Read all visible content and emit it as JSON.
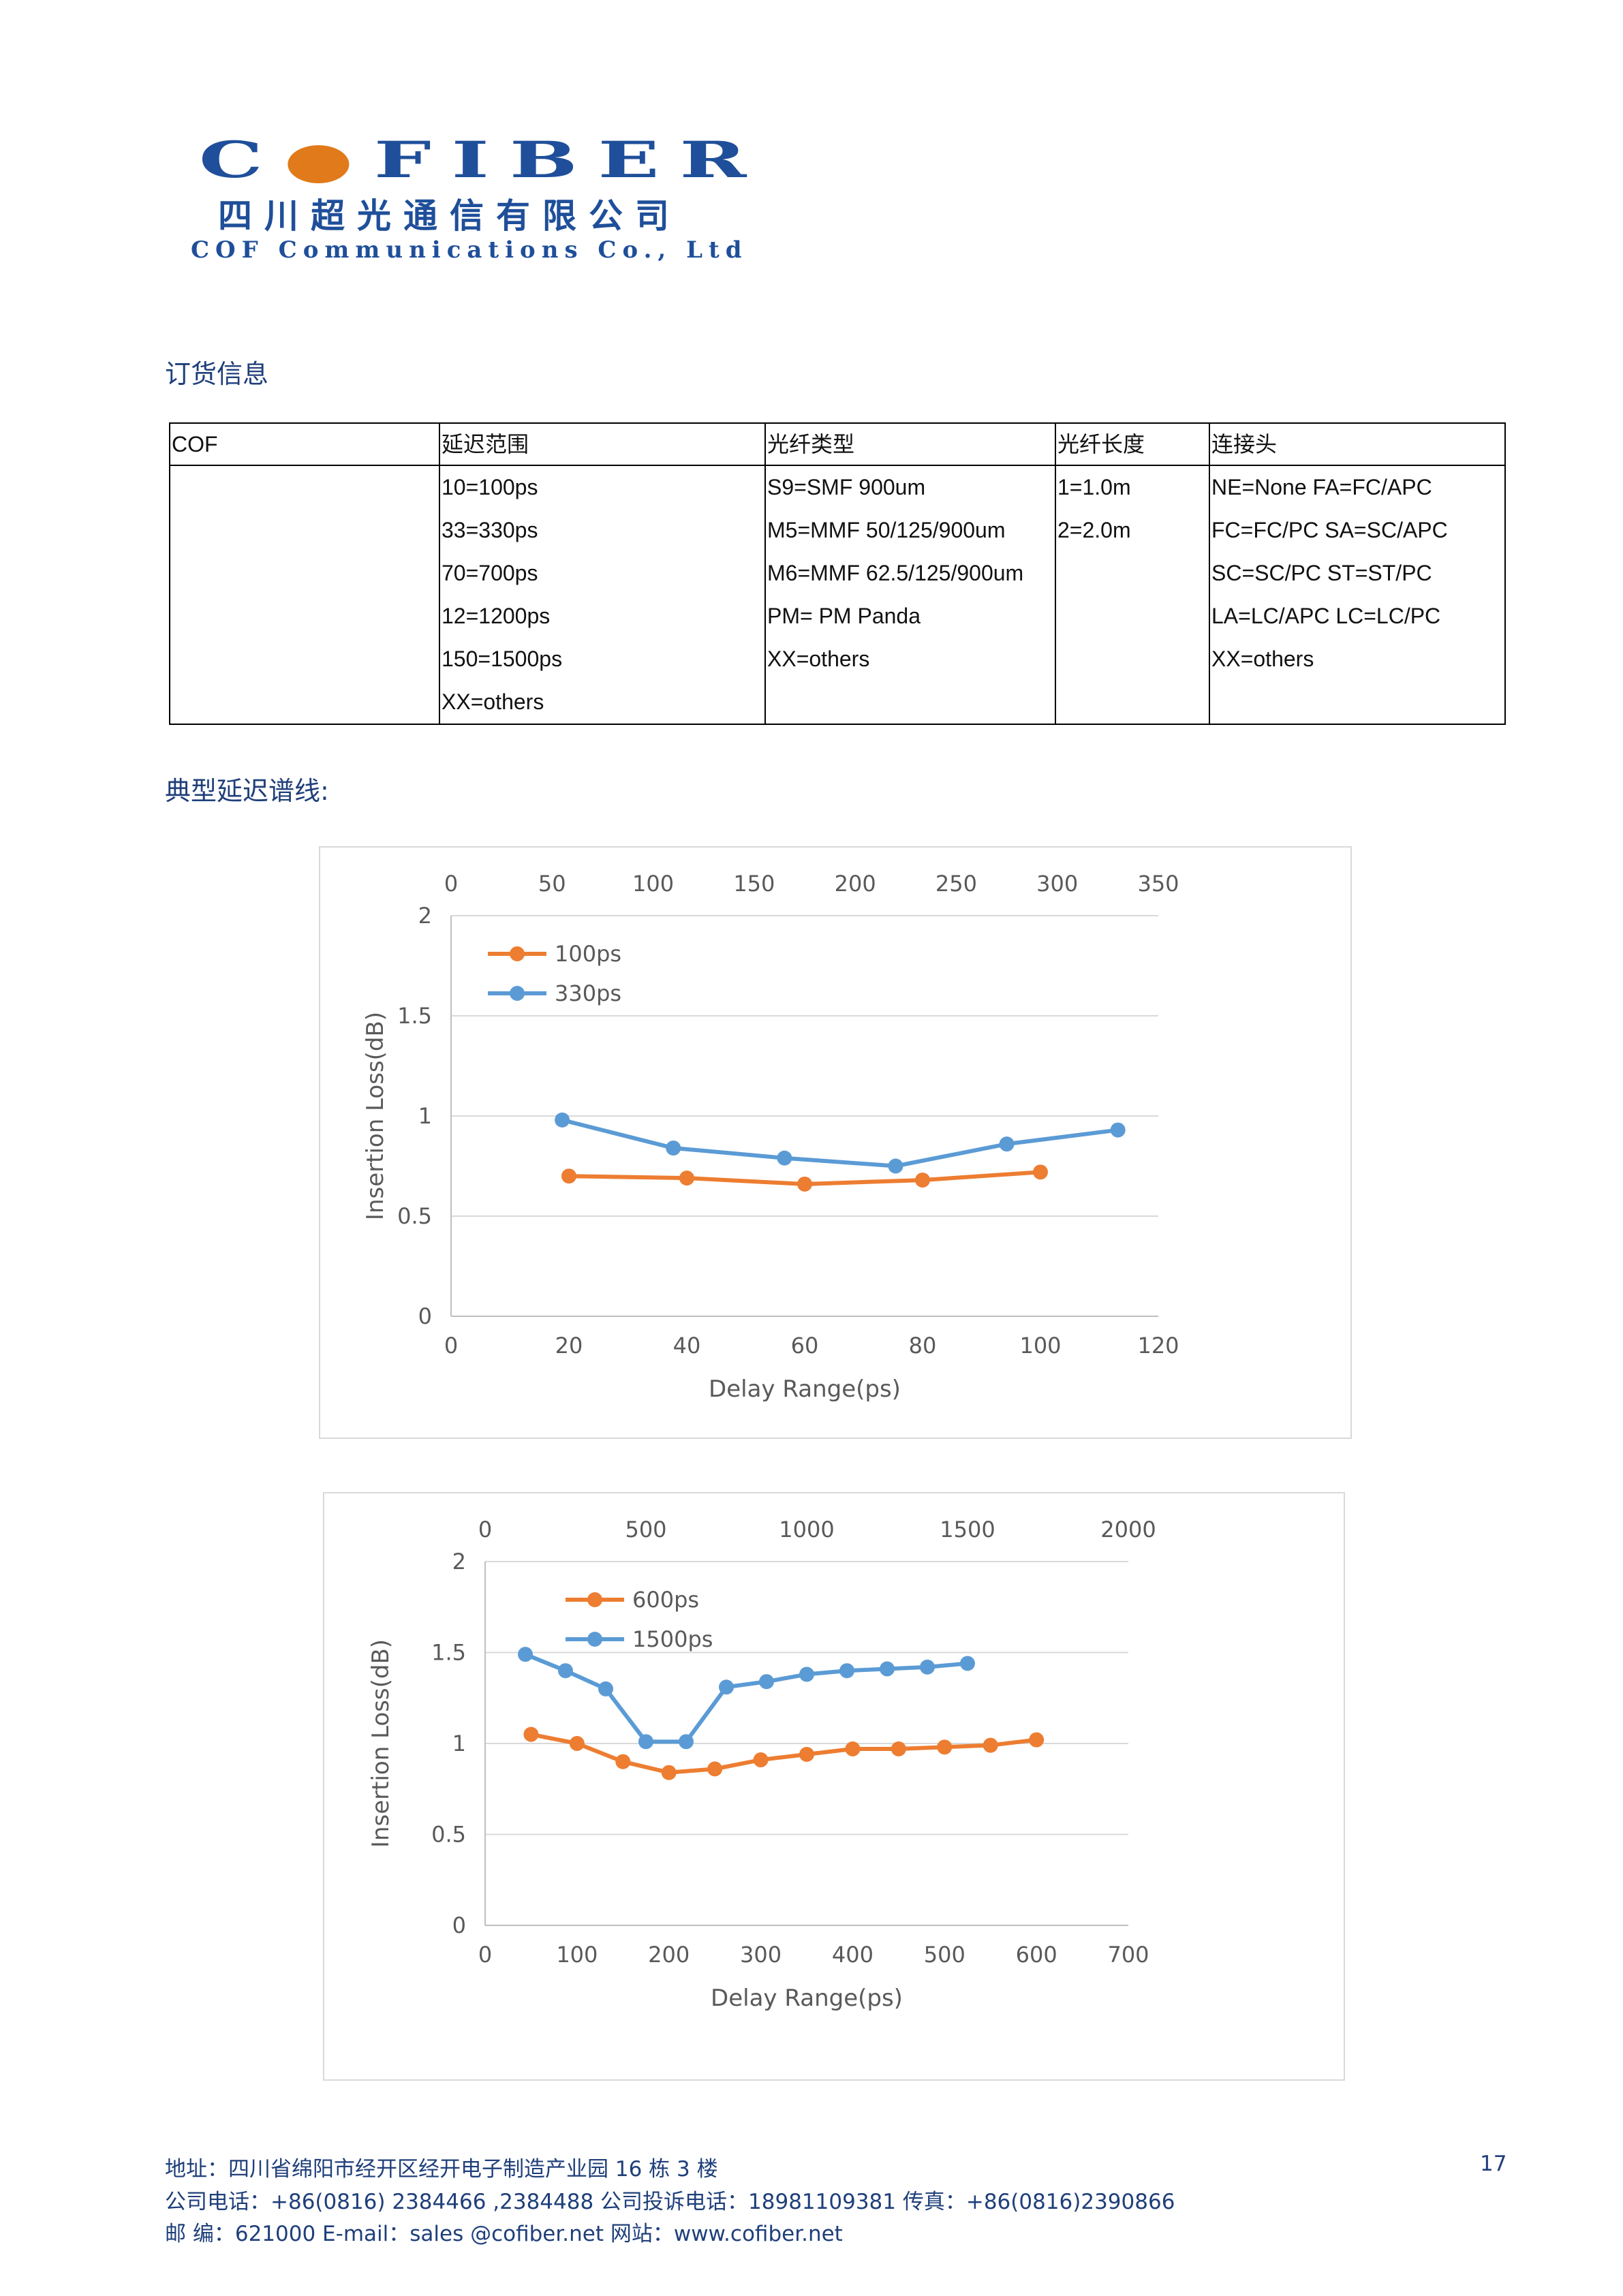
{
  "logo": {
    "main_left": "C",
    "main_right": "FIBER",
    "cn": "四川超光通信有限公司",
    "en": "COF Communications Co., Ltd"
  },
  "order_heading": "订货信息",
  "order_table": {
    "headers": [
      "COF",
      "延迟范围",
      "光纤类型",
      "光纤长度",
      "连接头"
    ],
    "columns": [
      [],
      [
        "10=100ps",
        "33=330ps",
        "70=700ps",
        "12=1200ps",
        "150=1500ps",
        "XX=others"
      ],
      [
        "S9=SMF 900um",
        "M5=MMF 50/125/900um",
        "M6=MMF 62.5/125/900um",
        "PM= PM Panda",
        "XX=others"
      ],
      [
        "1=1.0m",
        "2=2.0m"
      ],
      [
        "NE=None FA=FC/APC",
        "FC=FC/PC SA=SC/APC",
        "SC=SC/PC ST=ST/PC",
        "LA=LC/APC LC=LC/PC",
        "XX=others"
      ]
    ]
  },
  "curve_heading": "典型延迟谱线:",
  "colors": {
    "orange": "#ed7d31",
    "blue": "#5b9bd5",
    "grid": "#d9d9d9",
    "text": "#595959"
  },
  "chart_data": [
    {
      "type": "line",
      "xlabel": "Delay Range(ps)",
      "ylabel": "Insertion Loss(dB)",
      "ylim": [
        0,
        2
      ],
      "yticks": [
        "0",
        "0.5",
        "1",
        "1.5",
        "2"
      ],
      "xlim_bottom": [
        0,
        120
      ],
      "xticks_bottom": [
        "0",
        "20",
        "40",
        "60",
        "80",
        "100",
        "120"
      ],
      "xlim_top": [
        0,
        350
      ],
      "xticks_top": [
        "0",
        "50",
        "100",
        "150",
        "200",
        "250",
        "300",
        "350"
      ],
      "legend": [
        "100ps",
        "330ps"
      ],
      "series": [
        {
          "name": "100ps",
          "color": "#ed7d31",
          "axis": "bottom",
          "x": [
            20,
            40,
            60,
            80,
            100
          ],
          "values": [
            0.7,
            0.69,
            0.66,
            0.68,
            0.72
          ]
        },
        {
          "name": "330ps",
          "color": "#5b9bd5",
          "axis": "top",
          "x": [
            55,
            110,
            165,
            220,
            275,
            330
          ],
          "values": [
            0.98,
            0.84,
            0.79,
            0.75,
            0.86,
            0.93
          ]
        }
      ]
    },
    {
      "type": "line",
      "xlabel": "Delay Range(ps)",
      "ylabel": "Insertion Loss(dB)",
      "ylim": [
        0,
        2
      ],
      "yticks": [
        "0",
        "0.5",
        "1",
        "1.5",
        "2"
      ],
      "xlim_bottom": [
        0,
        700
      ],
      "xticks_bottom": [
        "0",
        "100",
        "200",
        "300",
        "400",
        "500",
        "600",
        "700"
      ],
      "xlim_top": [
        0,
        2000
      ],
      "xticks_top": [
        "0",
        "500",
        "1000",
        "1500",
        "2000"
      ],
      "legend": [
        "600ps",
        "1500ps"
      ],
      "series": [
        {
          "name": "600ps",
          "color": "#ed7d31",
          "axis": "bottom",
          "x": [
            50,
            100,
            150,
            200,
            250,
            300,
            350,
            400,
            450,
            500,
            550,
            600
          ],
          "values": [
            1.05,
            1.0,
            0.9,
            0.84,
            0.86,
            0.91,
            0.94,
            0.97,
            0.97,
            0.98,
            0.99,
            1.02
          ]
        },
        {
          "name": "1500ps",
          "color": "#5b9bd5",
          "axis": "top",
          "x": [
            125,
            250,
            375,
            500,
            625,
            750,
            875,
            1000,
            1125,
            1250,
            1375,
            1500
          ],
          "values": [
            1.49,
            1.4,
            1.3,
            1.01,
            1.01,
            1.31,
            1.34,
            1.38,
            1.4,
            1.41,
            1.42,
            1.44
          ]
        }
      ]
    }
  ],
  "footer": {
    "address": "地址：四川省绵阳市经开区经开电子制造产业园 16 栋 3 楼",
    "phones": "公司电话：+86(0816) 2384466 ,2384488      公司投诉电话：18981109381 传真：+86(0816)2390866",
    "postal": "邮    编：621000    E-mail：sales @cofiber.net           网站：www.cofiber.net",
    "page": "17"
  }
}
